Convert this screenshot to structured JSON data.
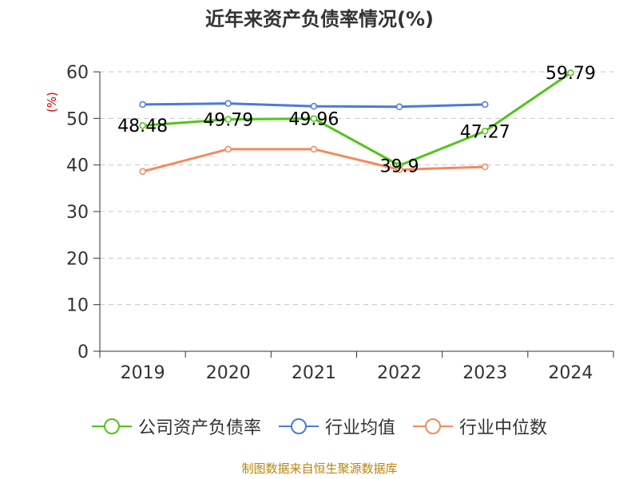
{
  "page": {
    "title": "近年来资产负债率情况(%)",
    "source": "制图数据来自恒生聚源数据库"
  },
  "chart_data": {
    "type": "line",
    "title": "近年来资产负债率情况(%)",
    "ylabel": "(%)",
    "xlabel": "",
    "categories": [
      "2019",
      "2020",
      "2021",
      "2022",
      "2023",
      "2024"
    ],
    "ylim": [
      0,
      60
    ],
    "yticks": [
      0,
      10,
      20,
      30,
      40,
      50,
      60
    ],
    "grid": true,
    "legend_position": "bottom",
    "series": [
      {
        "name": "公司资产负债率",
        "color": "#52c41a",
        "values": [
          48.48,
          49.79,
          49.96,
          39.9,
          47.27,
          59.79
        ],
        "labels": [
          "48.48",
          "49.79",
          "49.96",
          "39.9",
          "47.27",
          "59.79"
        ]
      },
      {
        "name": "行业均值",
        "color": "#4a7bd8",
        "values": [
          53.0,
          53.2,
          52.6,
          52.5,
          53.0,
          null
        ]
      },
      {
        "name": "行业中位数",
        "color": "#f4895f",
        "values": [
          38.6,
          43.4,
          43.4,
          39.0,
          39.6,
          null
        ]
      }
    ]
  }
}
